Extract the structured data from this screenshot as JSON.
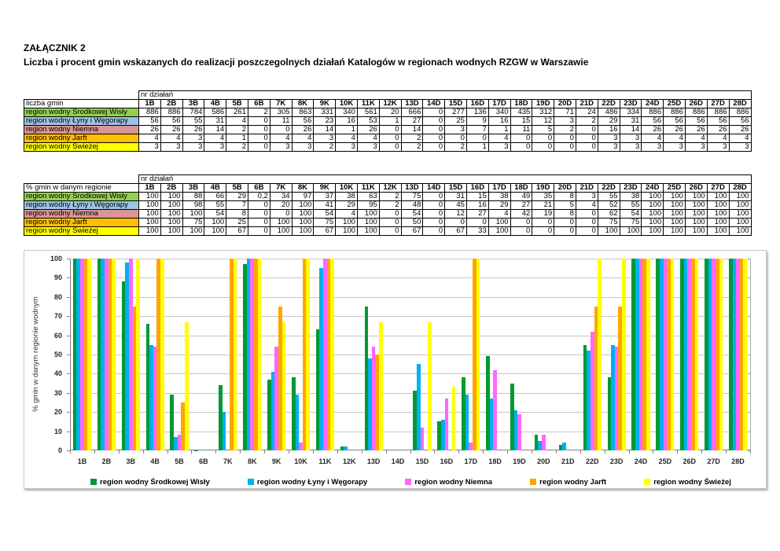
{
  "page": {
    "title": "ZAŁĄCZNIK 2",
    "subtitle": "Liczba i procent gmin wskazanych do realizacji poszczegolnych działań Katalogów w regionach wodnych RZGW w Warszawie"
  },
  "columns_header": "nr działań",
  "columns": [
    "1B",
    "2B",
    "3B",
    "4B",
    "5B",
    "6B",
    "7K",
    "8K",
    "9K",
    "10K",
    "11K",
    "12K",
    "13D",
    "14D",
    "15D",
    "16D",
    "17D",
    "18D",
    "19D",
    "20D",
    "21D",
    "22D",
    "23D",
    "24D",
    "25D",
    "26D",
    "27D",
    "28D"
  ],
  "regions": [
    {
      "label": "region wodny Środkowej Wisły",
      "row_color": "#92D050",
      "bar_color": "#009933"
    },
    {
      "label": "region wodny Łyny i Węgorapy",
      "row_color": "#9DC3E6",
      "bar_color": "#00B0F0"
    },
    {
      "label": "region wodny Niemna",
      "row_color": "#D99694",
      "bar_color": "#FF66FF"
    },
    {
      "label": "region wodny Jarft",
      "row_color": "#FFC000",
      "bar_color": "#FFA500"
    },
    {
      "label": "region wodny Świeżej",
      "row_color": "#FFFF00",
      "bar_color": "#FFFF00"
    }
  ],
  "table_counts": {
    "label": "liczba gmin",
    "rows": [
      [
        886,
        886,
        784,
        586,
        261,
        2,
        305,
        863,
        331,
        340,
        561,
        20,
        666,
        0,
        277,
        136,
        340,
        435,
        312,
        71,
        24,
        486,
        334,
        886,
        886,
        886,
        886,
        886
      ],
      [
        56,
        56,
        55,
        31,
        4,
        0,
        11,
        56,
        23,
        16,
        53,
        1,
        27,
        0,
        25,
        9,
        16,
        15,
        12,
        3,
        2,
        29,
        31,
        56,
        56,
        56,
        56,
        56
      ],
      [
        26,
        26,
        26,
        14,
        2,
        0,
        0,
        26,
        14,
        1,
        26,
        0,
        14,
        0,
        3,
        7,
        1,
        11,
        5,
        2,
        0,
        16,
        14,
        26,
        26,
        26,
        26,
        26
      ],
      [
        4,
        4,
        3,
        4,
        1,
        0,
        4,
        4,
        3,
        4,
        4,
        0,
        2,
        0,
        0,
        0,
        4,
        0,
        0,
        0,
        0,
        3,
        3,
        4,
        4,
        4,
        4,
        4
      ],
      [
        3,
        3,
        3,
        3,
        2,
        0,
        3,
        3,
        2,
        3,
        3,
        0,
        2,
        0,
        2,
        1,
        3,
        0,
        0,
        0,
        0,
        3,
        3,
        3,
        3,
        3,
        3,
        3
      ]
    ]
  },
  "table_percent": {
    "label": "% gmin w danym regionie",
    "rows": [
      [
        100,
        100,
        88,
        66,
        29,
        0.2,
        34,
        97,
        37,
        38,
        63,
        2,
        75,
        0,
        31,
        15,
        38,
        49,
        35,
        8,
        3,
        55,
        38,
        100,
        100,
        100,
        100,
        100
      ],
      [
        100,
        100,
        98,
        55,
        7,
        0,
        20,
        100,
        41,
        29,
        95,
        2,
        48,
        0,
        45,
        16,
        29,
        27,
        21,
        5,
        4,
        52,
        55,
        100,
        100,
        100,
        100,
        100
      ],
      [
        100,
        100,
        100,
        54,
        8,
        0,
        0,
        100,
        54,
        4,
        100,
        0,
        54,
        0,
        12,
        27,
        4,
        42,
        19,
        8,
        0,
        62,
        54,
        100,
        100,
        100,
        100,
        100
      ],
      [
        100,
        100,
        75,
        100,
        25,
        0,
        100,
        100,
        75,
        100,
        100,
        0,
        50,
        0,
        0,
        0,
        100,
        0,
        0,
        0,
        0,
        75,
        75,
        100,
        100,
        100,
        100,
        100
      ],
      [
        100,
        100,
        100,
        100,
        67,
        0,
        100,
        100,
        67,
        100,
        100,
        0,
        67,
        0,
        67,
        33,
        100,
        0,
        0,
        0,
        0,
        100,
        100,
        100,
        100,
        100,
        100,
        100
      ]
    ]
  },
  "chart_data": {
    "type": "bar",
    "title": "",
    "xlabel": "",
    "ylabel": "% gmin w danym regionie wodnym",
    "ylim": [
      0,
      100
    ],
    "yticks": [
      0,
      10,
      20,
      30,
      40,
      50,
      60,
      70,
      80,
      90,
      100
    ],
    "grid": true,
    "legend_position": "bottom",
    "categories": [
      "1B",
      "2B",
      "3B",
      "4B",
      "5B",
      "6B",
      "7K",
      "8K",
      "9K",
      "10K",
      "11K",
      "12K",
      "13D",
      "14D",
      "15D",
      "16D",
      "17D",
      "18D",
      "19D",
      "20D",
      "21D",
      "22D",
      "23D",
      "24D",
      "25D",
      "26D",
      "27D",
      "28D"
    ],
    "series": [
      {
        "name": "region wodny Środkowej Wisły",
        "color": "#009933",
        "values": [
          100,
          100,
          88,
          66,
          29,
          0.2,
          34,
          97,
          37,
          38,
          63,
          2,
          75,
          0,
          31,
          15,
          38,
          49,
          35,
          8,
          3,
          55,
          38,
          100,
          100,
          100,
          100,
          100
        ]
      },
      {
        "name": "region wodny Łyny i Węgorapy",
        "color": "#00B0F0",
        "values": [
          100,
          100,
          98,
          55,
          7,
          0,
          20,
          100,
          41,
          29,
          95,
          2,
          48,
          0,
          45,
          16,
          29,
          27,
          21,
          5,
          4,
          52,
          55,
          100,
          100,
          100,
          100,
          100
        ]
      },
      {
        "name": "region wodny Niemna",
        "color": "#FF66FF",
        "values": [
          100,
          100,
          100,
          54,
          8,
          0,
          0,
          100,
          54,
          4,
          100,
          0,
          54,
          0,
          12,
          27,
          4,
          42,
          19,
          8,
          0,
          62,
          54,
          100,
          100,
          100,
          100,
          100
        ]
      },
      {
        "name": "region wodny Jarft",
        "color": "#FFA500",
        "values": [
          100,
          100,
          75,
          100,
          25,
          0,
          100,
          100,
          75,
          100,
          100,
          0,
          50,
          0,
          0,
          0,
          100,
          0,
          0,
          0,
          0,
          75,
          75,
          100,
          100,
          100,
          100,
          100
        ]
      },
      {
        "name": "region wodny Świeżej",
        "color": "#FFFF00",
        "values": [
          100,
          100,
          100,
          100,
          67,
          0,
          100,
          100,
          67,
          100,
          100,
          0,
          67,
          0,
          67,
          33,
          100,
          0,
          0,
          0,
          0,
          100,
          100,
          100,
          100,
          100,
          100,
          100
        ]
      }
    ]
  }
}
